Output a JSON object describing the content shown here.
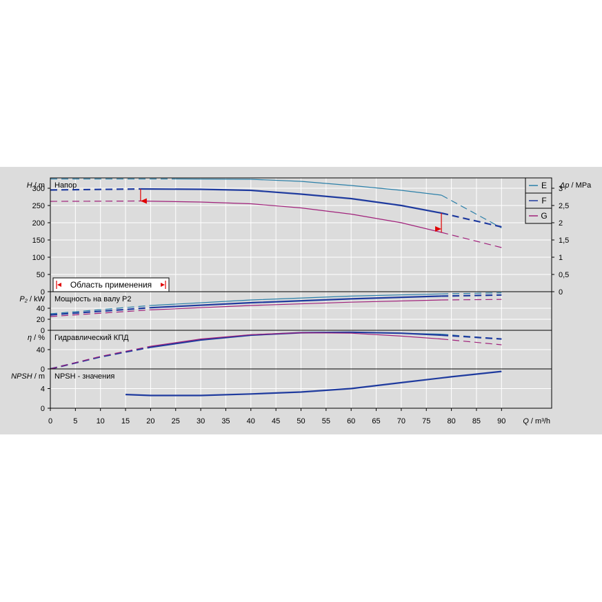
{
  "chart_data": {
    "type": "line",
    "x_axis": {
      "label_symbol": "Q",
      "label_unit": " / m³/h",
      "min": 0,
      "max": 100,
      "ticks": [
        0,
        5,
        10,
        15,
        20,
        25,
        30,
        35,
        40,
        45,
        50,
        55,
        60,
        65,
        70,
        75,
        80,
        85,
        90
      ]
    },
    "legend": [
      {
        "name": "E",
        "color": "#2a7fa8"
      },
      {
        "name": "F",
        "color": "#1e3a9e"
      },
      {
        "name": "G",
        "color": "#a0207a"
      }
    ],
    "panels": [
      {
        "id": "head",
        "title": "Напор",
        "y_label_symbol": "H",
        "y_label_unit": " / m",
        "ymin": 0,
        "ymax": 330,
        "yticks": [
          0,
          50,
          100,
          150,
          200,
          250,
          300
        ],
        "right_axis": {
          "label_symbol": "Δp",
          "label_unit": " / MPa",
          "ticks": [
            "0",
            "0,5",
            "1",
            "1,5",
            "2",
            "2,5",
            "3"
          ],
          "values": [
            0,
            0.5,
            1,
            1.5,
            2,
            2.5,
            3
          ],
          "max": 3.3
        },
        "series": [
          {
            "name": "E",
            "dashed": [
              [
                0,
                327
              ],
              [
                15,
                327
              ],
              [
                25,
                327
              ]
            ],
            "solid": [
              [
                25,
                327
              ],
              [
                40,
                326
              ],
              [
                50,
                320
              ],
              [
                60,
                308
              ],
              [
                70,
                294
              ],
              [
                78,
                280
              ]
            ],
            "dashed_after": [
              [
                78,
                280
              ],
              [
                90,
                185
              ]
            ],
            "style": "thin"
          },
          {
            "name": "F",
            "dashed": [
              [
                0,
                295
              ],
              [
                18,
                298
              ]
            ],
            "solid": [
              [
                18,
                298
              ],
              [
                30,
                297
              ],
              [
                40,
                294
              ],
              [
                50,
                283
              ],
              [
                60,
                270
              ],
              [
                70,
                250
              ],
              [
                78,
                228
              ]
            ],
            "dashed_after": [
              [
                78,
                228
              ],
              [
                90,
                188
              ]
            ],
            "style": "thick"
          },
          {
            "name": "G",
            "dashed": [
              [
                0,
                262
              ],
              [
                18,
                263
              ]
            ],
            "solid": [
              [
                18,
                263
              ],
              [
                30,
                260
              ],
              [
                40,
                255
              ],
              [
                50,
                243
              ],
              [
                60,
                225
              ],
              [
                70,
                200
              ],
              [
                78,
                172
              ]
            ],
            "dashed_after": [
              [
                78,
                172
              ],
              [
                90,
                128
              ]
            ],
            "style": "thin"
          }
        ],
        "application_range": {
          "label": "Область применения",
          "start": 18,
          "end": 78
        }
      },
      {
        "id": "power",
        "title": "Мощность на валу P2",
        "y_label_symbol": "P₂",
        "y_label_unit": " / kW",
        "ymin": 0,
        "ymax": 70,
        "yticks": [
          0,
          20,
          40
        ],
        "series": [
          {
            "name": "E",
            "dashed": [
              [
                0,
                30
              ],
              [
                20,
                45
              ]
            ],
            "solid": [
              [
                20,
                45
              ],
              [
                40,
                55
              ],
              [
                60,
                62
              ],
              [
                78,
                66
              ]
            ],
            "dashed_after": [
              [
                78,
                66
              ],
              [
                90,
                68
              ]
            ],
            "style": "thin"
          },
          {
            "name": "F",
            "dashed": [
              [
                0,
                28
              ],
              [
                20,
                41
              ]
            ],
            "solid": [
              [
                20,
                41
              ],
              [
                40,
                50
              ],
              [
                60,
                57
              ],
              [
                78,
                62
              ]
            ],
            "dashed_after": [
              [
                78,
                62
              ],
              [
                90,
                64
              ]
            ],
            "style": "thick"
          },
          {
            "name": "G",
            "dashed": [
              [
                0,
                25
              ],
              [
                20,
                37
              ]
            ],
            "solid": [
              [
                20,
                37
              ],
              [
                40,
                45
              ],
              [
                60,
                51
              ],
              [
                78,
                55
              ]
            ],
            "dashed_after": [
              [
                78,
                55
              ],
              [
                90,
                56
              ]
            ],
            "style": "thin"
          }
        ]
      },
      {
        "id": "efficiency",
        "title": "Гидравлический КПД",
        "y_label_symbol": "η",
        "y_label_unit": " / %",
        "ymin": 0,
        "ymax": 80,
        "yticks": [
          0,
          40
        ],
        "series": [
          {
            "name": "E",
            "dashed": [
              [
                0,
                0
              ],
              [
                10,
                25
              ],
              [
                20,
                45
              ]
            ],
            "solid": [
              [
                20,
                45
              ],
              [
                30,
                60
              ],
              [
                40,
                70
              ],
              [
                50,
                75
              ],
              [
                60,
                76
              ],
              [
                70,
                74
              ],
              [
                78,
                72
              ]
            ],
            "dashed_after": [
              [
                78,
                72
              ],
              [
                90,
                62
              ]
            ],
            "style": "thin"
          },
          {
            "name": "F",
            "dashed": [
              [
                0,
                0
              ],
              [
                10,
                25
              ],
              [
                20,
                45
              ]
            ],
            "solid": [
              [
                20,
                45
              ],
              [
                30,
                60
              ],
              [
                40,
                70
              ],
              [
                50,
                75
              ],
              [
                60,
                76
              ],
              [
                70,
                74
              ],
              [
                78,
                70
              ]
            ],
            "dashed_after": [
              [
                78,
                70
              ],
              [
                90,
                62
              ]
            ],
            "style": "thick"
          },
          {
            "name": "G",
            "dashed": [
              [
                0,
                0
              ],
              [
                10,
                26
              ],
              [
                20,
                47
              ]
            ],
            "solid": [
              [
                20,
                47
              ],
              [
                30,
                62
              ],
              [
                40,
                71
              ],
              [
                50,
                75
              ],
              [
                60,
                74
              ],
              [
                70,
                68
              ],
              [
                78,
                62
              ]
            ],
            "dashed_after": [
              [
                78,
                62
              ],
              [
                90,
                50
              ]
            ],
            "style": "thin"
          }
        ]
      },
      {
        "id": "npsh",
        "title": "NPSH - значения",
        "y_label_symbol": "NPSH",
        "y_label_unit": " / m",
        "ymin": 0,
        "ymax": 8,
        "yticks": [
          0,
          4
        ],
        "series": [
          {
            "name": "F",
            "dashed": [],
            "solid": [
              [
                15,
                2.8
              ],
              [
                20,
                2.6
              ],
              [
                30,
                2.6
              ],
              [
                40,
                2.9
              ],
              [
                50,
                3.3
              ],
              [
                60,
                4.0
              ],
              [
                70,
                5.2
              ],
              [
                80,
                6.4
              ],
              [
                90,
                7.5
              ]
            ],
            "dashed_after": [],
            "style": "thick"
          }
        ]
      }
    ]
  }
}
